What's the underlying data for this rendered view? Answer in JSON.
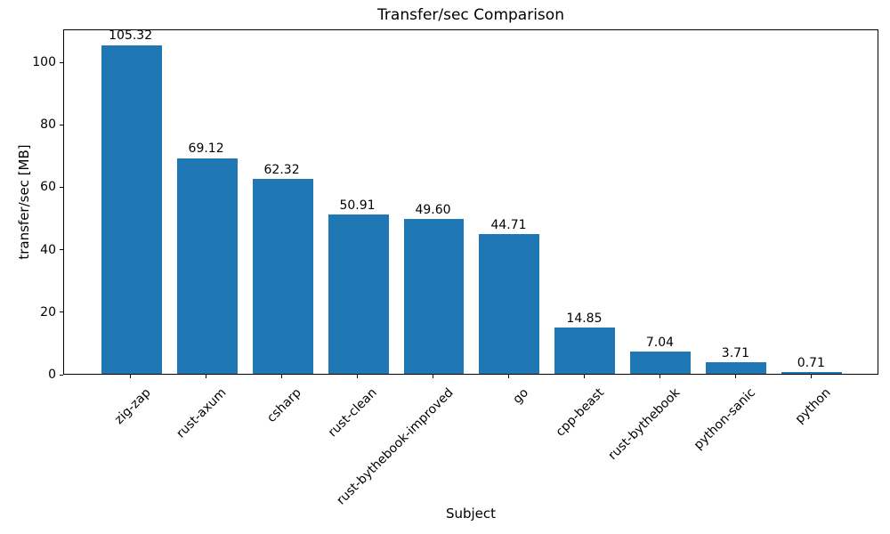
{
  "chart_data": {
    "type": "bar",
    "title": "Transfer/sec Comparison",
    "xlabel": "Subject",
    "ylabel": "transfer/sec [MB]",
    "categories": [
      "zig-zap",
      "rust-axum",
      "csharp",
      "rust-clean",
      "rust-bythebook-improved",
      "go",
      "cpp-beast",
      "rust-bythebook",
      "python-sanic",
      "python"
    ],
    "values": [
      105.32,
      69.12,
      62.32,
      50.91,
      49.6,
      44.71,
      14.85,
      7.04,
      3.71,
      0.71
    ],
    "value_labels": [
      "105.32",
      "69.12",
      "62.32",
      "50.91",
      "49.60",
      "44.71",
      "14.85",
      "7.04",
      "3.71",
      "0.71"
    ],
    "yticks": [
      0,
      20,
      40,
      60,
      80,
      100
    ],
    "ylim": [
      0,
      110.59
    ],
    "grid": false,
    "legend": "none",
    "bar_color": "#1f77b4",
    "axis_color": "#000000",
    "text_color": "#000000",
    "background_color": "#ffffff"
  }
}
